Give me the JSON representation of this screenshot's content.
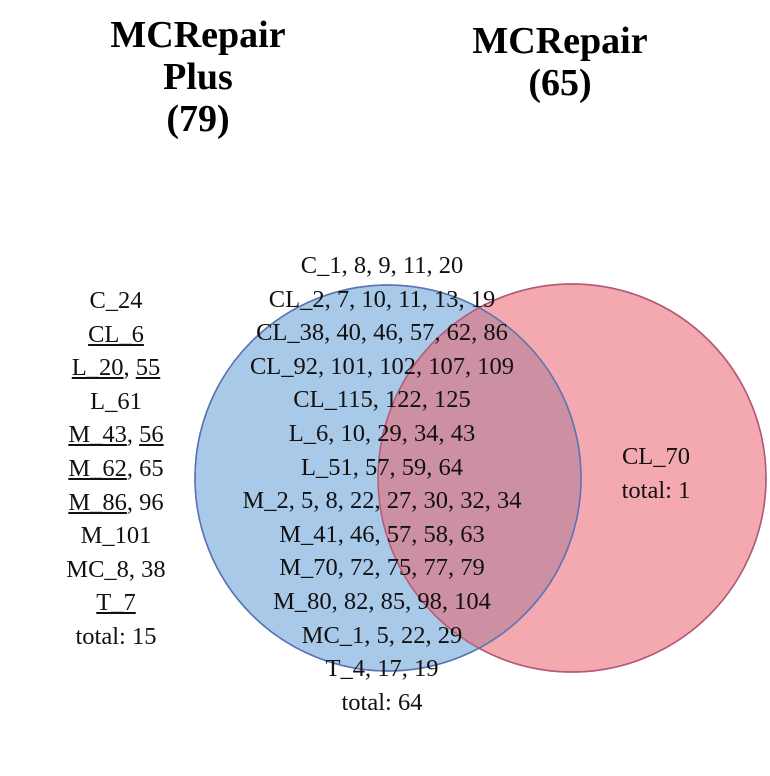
{
  "sets": {
    "left": {
      "title_lines": [
        "MCRepair",
        "Plus",
        "(79)"
      ],
      "color": "#a9c9e9",
      "stroke": "#5a73b4"
    },
    "right": {
      "title_lines": [
        "MCRepair",
        "(65)"
      ],
      "color": "#f29aa3",
      "stroke": "#b45a78"
    }
  },
  "regions": {
    "left_only": {
      "lines": [
        [
          {
            "t": "C_24",
            "u": false
          }
        ],
        [
          {
            "t": "CL_6",
            "u": true
          }
        ],
        [
          {
            "t": "L_20",
            "u": true
          },
          {
            "t": ", ",
            "u": false
          },
          {
            "t": "55",
            "u": true
          }
        ],
        [
          {
            "t": "L_61",
            "u": false
          }
        ],
        [
          {
            "t": "M_43",
            "u": true
          },
          {
            "t": ", ",
            "u": false
          },
          {
            "t": "56",
            "u": true
          }
        ],
        [
          {
            "t": "M_62",
            "u": true
          },
          {
            "t": ", 65",
            "u": false
          }
        ],
        [
          {
            "t": "M_86",
            "u": true
          },
          {
            "t": ", 96",
            "u": false
          }
        ],
        [
          {
            "t": "M_101",
            "u": false
          }
        ],
        [
          {
            "t": "MC_8, 38",
            "u": false
          }
        ],
        [
          {
            "t": "T_7",
            "u": true
          }
        ],
        [
          {
            "t": "total: 15",
            "u": false
          }
        ]
      ]
    },
    "intersection": {
      "lines": [
        [
          {
            "t": "C_1, 8, 9, 11, 20",
            "u": false
          }
        ],
        [
          {
            "t": "CL_2, 7, 10, 11, 13, 19",
            "u": false
          }
        ],
        [
          {
            "t": "CL_38, 40, 46, 57, 62, 86",
            "u": false
          }
        ],
        [
          {
            "t": "CL_92, 101, 102, 107, 109",
            "u": false
          }
        ],
        [
          {
            "t": "CL_115, 122, 125",
            "u": false
          }
        ],
        [
          {
            "t": "L_6, 10, 29, 34, 43",
            "u": false
          }
        ],
        [
          {
            "t": "L_51, 57, 59, 64",
            "u": false
          }
        ],
        [
          {
            "t": "M_2, 5, 8, 22, 27, 30, 32, 34",
            "u": false
          }
        ],
        [
          {
            "t": "M_41, 46, 57, 58, 63",
            "u": false
          }
        ],
        [
          {
            "t": "M_70, 72, 75, 77, 79",
            "u": false
          }
        ],
        [
          {
            "t": "M_80, 82, 85, 98, 104",
            "u": false
          }
        ],
        [
          {
            "t": "MC_1, 5, 22, 29",
            "u": false
          }
        ],
        [
          {
            "t": "T_4, 17, 19",
            "u": false
          }
        ],
        [
          {
            "t": "total: 64",
            "u": false
          }
        ]
      ]
    },
    "right_only": {
      "lines": [
        [
          {
            "t": "CL_70",
            "u": false
          }
        ],
        [
          {
            "t": "total: 1",
            "u": false
          }
        ]
      ]
    }
  }
}
